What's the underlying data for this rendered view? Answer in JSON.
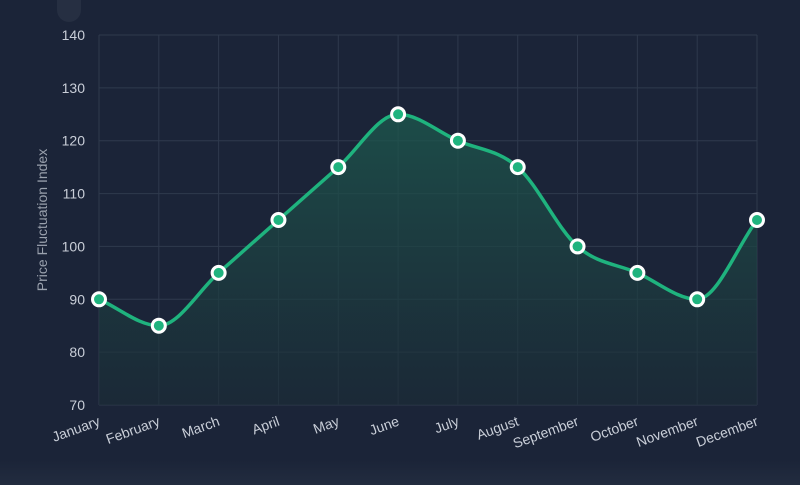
{
  "chart_data": {
    "type": "area",
    "title": "",
    "xlabel": "",
    "ylabel": "Price Fluctuation Index",
    "categories": [
      "January",
      "February",
      "March",
      "April",
      "May",
      "June",
      "July",
      "August",
      "September",
      "October",
      "November",
      "December"
    ],
    "series": [
      {
        "values": [
          90,
          85,
          95,
          105,
          115,
          125,
          120,
          115,
          100,
          95,
          90,
          105
        ]
      }
    ],
    "ylim": [
      70,
      140
    ],
    "yticks": [
      70,
      80,
      90,
      100,
      110,
      120,
      130,
      140
    ],
    "grid": true,
    "legend": "none",
    "colors": {
      "background": "#1b2438",
      "line": "#1fb37e",
      "marker_fill": "#1fb37e",
      "marker_stroke": "#ffffff",
      "grid": "#2f3a4d",
      "area_top": "#1d5a4e",
      "area_bottom": "#1b2c36"
    }
  }
}
